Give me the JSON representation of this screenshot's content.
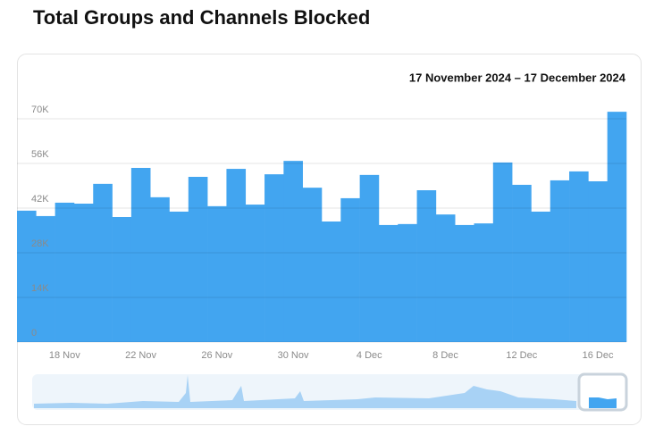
{
  "chart_data": {
    "type": "bar",
    "title": "Total Groups and Channels Blocked",
    "subtitle": "17 November 2024 – 17 December 2024",
    "categories": [
      null,
      null,
      "18 Nov",
      null,
      null,
      null,
      "22 Nov",
      null,
      null,
      null,
      "26 Nov",
      null,
      null,
      null,
      "30 Nov",
      null,
      null,
      null,
      "4 Dec",
      null,
      null,
      null,
      "8 Dec",
      null,
      null,
      null,
      "12 Dec",
      null,
      null,
      null,
      "16 Dec",
      null
    ],
    "values": [
      41200,
      39500,
      43700,
      43400,
      49600,
      39200,
      54600,
      45400,
      40900,
      51800,
      42600,
      54300,
      43100,
      52600,
      56800,
      48400,
      37800,
      45100,
      52400,
      36700,
      37000,
      47600,
      40000,
      36700,
      37200,
      56300,
      49300,
      40900,
      50700,
      53500,
      50400,
      72200
    ],
    "color": "#42a5f0",
    "ylim": [
      0,
      70000
    ],
    "yticks": [
      0,
      {
        "value": 14000,
        "label": "14K"
      },
      {
        "value": 28000,
        "label": "28K"
      },
      {
        "value": 42000,
        "label": "42K"
      },
      {
        "value": 56000,
        "label": "56K"
      },
      {
        "value": 70000,
        "label": "70K"
      }
    ],
    "grid": true
  }
}
